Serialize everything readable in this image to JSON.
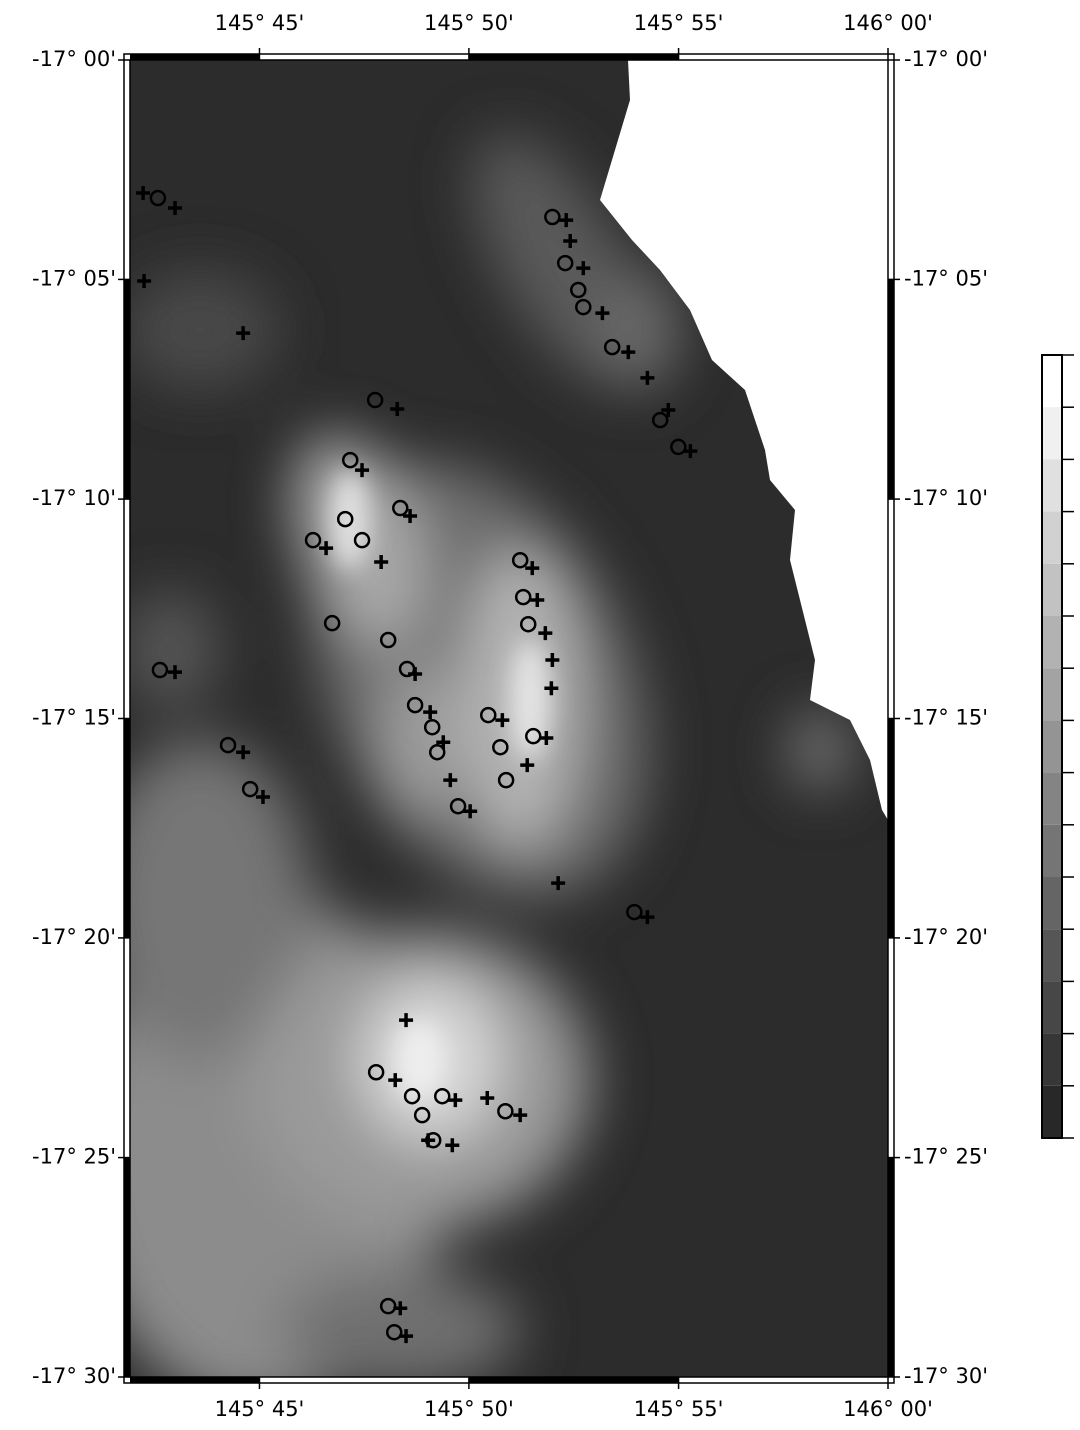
{
  "chart_data": {
    "type": "map",
    "xlim": [
      145.6985,
      146.0
    ],
    "ylim": [
      -17.5,
      -17.0
    ],
    "xticks": [
      {
        "value": 145.75,
        "label": "145° 45'"
      },
      {
        "value": 145.8333,
        "label": "145° 50'"
      },
      {
        "value": 145.9167,
        "label": "145° 55'"
      },
      {
        "value": 146.0,
        "label": "146° 00'"
      }
    ],
    "yticks": [
      {
        "value": -17.0,
        "label": "-17° 00'"
      },
      {
        "value": -17.0833,
        "label": "-17° 05'"
      },
      {
        "value": -17.1667,
        "label": "-17° 10'"
      },
      {
        "value": -17.25,
        "label": "-17° 15'"
      },
      {
        "value": -17.3333,
        "label": "-17° 20'"
      },
      {
        "value": -17.4167,
        "label": "-17° 25'"
      },
      {
        "value": -17.5,
        "label": "-17° 30'"
      }
    ],
    "circles": {
      "x": [
        145.7096,
        145.8665,
        145.8716,
        145.8768,
        145.8788,
        145.8903,
        145.9094,
        145.9166,
        145.796,
        145.7861,
        145.7841,
        145.7908,
        145.806,
        145.7713,
        145.7789,
        145.8012,
        145.8087,
        145.8119,
        145.8187,
        145.8207,
        145.841,
        145.8458,
        145.8481,
        145.8537,
        145.8549,
        145.8569,
        145.8589,
        145.829,
        145.7104,
        145.7375,
        145.7463,
        145.8991,
        145.7964,
        145.8107,
        145.8147,
        145.8191,
        145.8227,
        145.8478,
        145.8012,
        145.8036
      ],
      "y": [
        -17.0524,
        -17.0596,
        -17.0771,
        -17.0873,
        -17.0938,
        -17.109,
        -17.1367,
        -17.1469,
        -17.1291,
        -17.1519,
        -17.1743,
        -17.1823,
        -17.1701,
        -17.1823,
        -17.2138,
        -17.2202,
        -17.2312,
        -17.2449,
        -17.2533,
        -17.2628,
        -17.2487,
        -17.2609,
        -17.2734,
        -17.1899,
        -17.2039,
        -17.2142,
        -17.2567,
        -17.2833,
        -17.2316,
        -17.2601,
        -17.2768,
        -17.3235,
        -17.3843,
        -17.3934,
        -17.4006,
        -17.4101,
        -17.3934,
        -17.3991,
        -17.4731,
        -17.483
      ]
    },
    "crosses": {
      "x": [
        145.7037,
        145.7164,
        145.7041,
        145.7435,
        145.872,
        145.8736,
        145.8788,
        145.8864,
        145.8967,
        145.9043,
        145.9126,
        145.9214,
        145.8048,
        145.7908,
        145.8099,
        145.7984,
        145.7765,
        145.8119,
        145.8179,
        145.8231,
        145.8259,
        145.8338,
        145.8466,
        145.8565,
        145.8585,
        145.8605,
        145.8637,
        145.8665,
        145.8661,
        145.8641,
        145.7164,
        145.7435,
        145.7514,
        145.8688,
        145.9043,
        145.8083,
        145.804,
        145.8279,
        145.8406,
        145.8537,
        145.8171,
        145.8267,
        145.806,
        145.8083
      ],
      "y": [
        -17.0505,
        -17.0562,
        -17.0839,
        -17.1037,
        -17.0608,
        -17.0687,
        -17.079,
        -17.0961,
        -17.1109,
        -17.1207,
        -17.1329,
        -17.1485,
        -17.1325,
        -17.1557,
        -17.1731,
        -17.1906,
        -17.1853,
        -17.2331,
        -17.2476,
        -17.259,
        -17.2734,
        -17.2852,
        -17.2506,
        -17.2677,
        -17.1929,
        -17.205,
        -17.2176,
        -17.2278,
        -17.2385,
        -17.2574,
        -17.2324,
        -17.2628,
        -17.2798,
        -17.3125,
        -17.3254,
        -17.3645,
        -17.3873,
        -17.3949,
        -17.3941,
        -17.4006,
        -17.4101,
        -17.412,
        -17.4739,
        -17.4845
      ]
    }
  }
}
